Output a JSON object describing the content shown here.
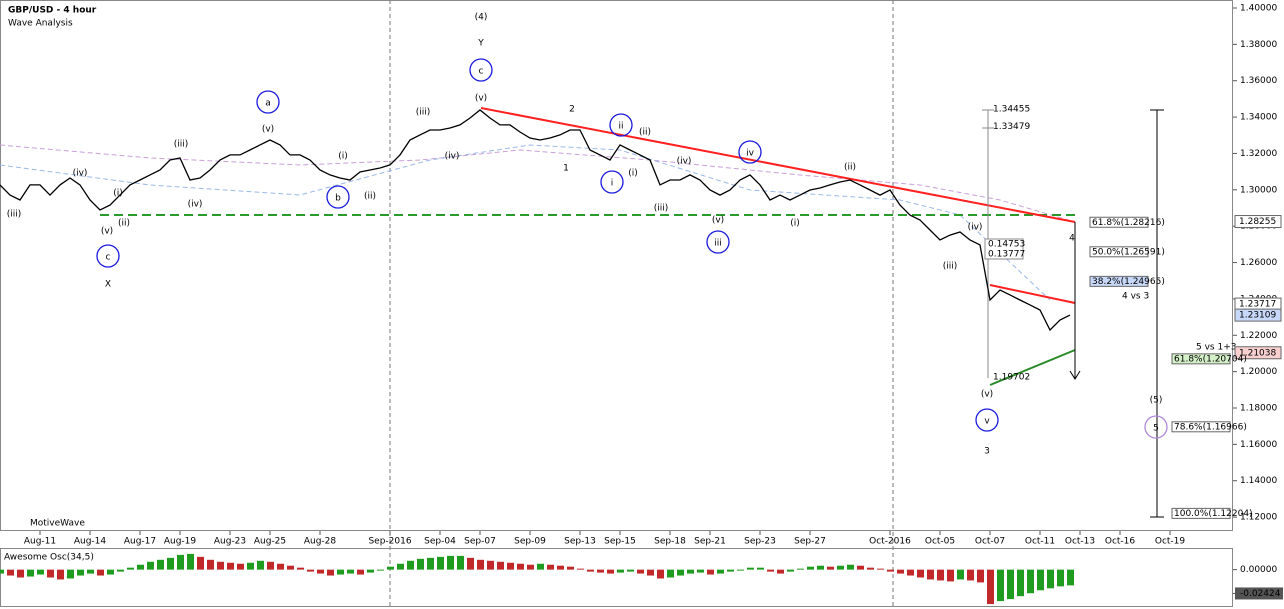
{
  "chart_data": [
    {
      "type": "line",
      "title": "GBP/USD - 4 hour",
      "subtitle": "Wave Analysis",
      "watermark": "MotiveWave",
      "categories": [
        null,
        null,
        null,
        null,
        "Aug-11",
        null,
        null,
        null,
        null,
        "Aug-14",
        null,
        null,
        null,
        null,
        "Aug-17",
        null,
        null,
        null,
        "Aug-19",
        null,
        null,
        null,
        null,
        "Aug-23",
        null,
        null,
        null,
        "Aug-25",
        null,
        null,
        null,
        null,
        "Aug-28",
        null,
        null,
        null,
        null,
        null,
        null,
        "Sep-2016",
        null,
        null,
        null,
        null,
        "Sep-04",
        null,
        null,
        null,
        "Sep-07",
        null,
        null,
        null,
        null,
        "Sep-09",
        null,
        null,
        null,
        null,
        "Sep-13",
        null,
        null,
        null,
        "Sep-15",
        null,
        null,
        null,
        null,
        "Sep-18",
        null,
        null,
        null,
        "Sep-21",
        null,
        null,
        null,
        null,
        "Sep-23",
        null,
        null,
        null,
        null,
        "Sep-27",
        null,
        null,
        null,
        null,
        null,
        null,
        null,
        "Oct-2016",
        null,
        null,
        null,
        null,
        "Oct-05",
        null,
        null,
        null,
        null,
        "Oct-07",
        null,
        null,
        null,
        null,
        "Oct-11",
        null,
        null,
        null,
        "Oct-13",
        null,
        null,
        null,
        "Oct-16",
        null,
        null,
        null,
        null,
        "Oct-19",
        null,
        null,
        null,
        null,
        null
      ],
      "series": [
        {
          "name": "GBP/USD",
          "color": "#000000",
          "values": [
            1.3027,
            1.2971,
            1.2944,
            1.3027,
            1.3027,
            1.2971,
            1.3027,
            1.3065,
            1.3027,
            1.2944,
            1.2889,
            1.2916,
            1.2971,
            1.3027,
            1.3054,
            1.3082,
            1.3109,
            1.3164,
            1.3175,
            1.3054,
            1.3065,
            1.3109,
            1.3164,
            1.3192,
            1.3192,
            1.3219,
            1.3247,
            1.3274,
            1.3247,
            1.3192,
            1.3192,
            1.3164,
            1.3109,
            1.3082,
            1.3065,
            1.3054,
            1.3098,
            1.3109,
            1.312,
            1.3137,
            1.3192,
            1.3274,
            1.3302,
            1.3329,
            1.3329,
            1.334,
            1.3357,
            1.3395,
            1.3439,
            1.3395,
            1.3357,
            1.3357,
            1.3318,
            1.3285,
            1.3274,
            1.3285,
            1.3302,
            1.3329,
            1.3329,
            1.3219,
            1.3192,
            1.3164,
            1.3247,
            1.3219,
            1.3192,
            1.3164,
            1.3027,
            1.3054,
            1.3054,
            1.3082,
            1.3054,
            1.2999,
            1.2971,
            1.2999,
            1.3054,
            1.3082,
            1.3027,
            1.2944,
            1.2971,
            1.2944,
            1.2971,
            1.2999,
            1.301,
            1.3027,
            1.3043,
            1.3054,
            1.3027,
            1.2999,
            1.2971,
            1.2999,
            1.2916,
            1.2861,
            1.2834,
            1.2779,
            1.2724,
            1.2751,
            1.2768,
            1.2724,
            1.2697,
            1.2394,
            1.2449,
            1.2422,
            1.2394,
            1.2367,
            1.2339,
            1.2229,
            1.2284,
            1.2311,
            null,
            null,
            null,
            null,
            null,
            null,
            null,
            null,
            null,
            null,
            null,
            null,
            null,
            null,
            null
          ]
        }
      ],
      "ylim": [
        1.1129,
        1.4044
      ],
      "yticks": [
        {
          "value": 1.4,
          "label": "1.40000"
        },
        {
          "value": 1.38,
          "label": "1.38000"
        },
        {
          "value": 1.36,
          "label": "1.36000"
        },
        {
          "value": 1.34,
          "label": "1.34000"
        },
        {
          "value": 1.32,
          "label": "1.32000"
        },
        {
          "value": 1.3,
          "label": "1.30000"
        },
        {
          "value": 1.28,
          "label": "1.28000"
        },
        {
          "value": 1.26,
          "label": "1.26000"
        },
        {
          "value": 1.24,
          "label": "1.24000"
        },
        {
          "value": 1.22,
          "label": "1.22000"
        },
        {
          "value": 1.2,
          "label": "1.20000"
        },
        {
          "value": 1.18,
          "label": "1.18000"
        },
        {
          "value": 1.16,
          "label": "1.16000"
        },
        {
          "value": 1.14,
          "label": "1.14000"
        },
        {
          "value": 1.12,
          "label": "1.12000"
        }
      ],
      "grid": false,
      "price_markers": [
        {
          "value": 1.28255,
          "color": "#ffffff"
        },
        {
          "value": 1.23717,
          "color": "#ffffff"
        },
        {
          "value": 1.23109,
          "color": "#c8d8f8"
        },
        {
          "value": 1.21038,
          "color": "#f8d0d0"
        }
      ],
      "fib_levels": [
        {
          "value": 1.28216,
          "label": "61.8%(1.28216)",
          "color": "#ffffff"
        },
        {
          "value": 1.26591,
          "label": "50.0%(1.26591)",
          "color": "#ffffff"
        },
        {
          "value": 1.24965,
          "label": "38.2%(1.24965)",
          "color": "#c8d8f8"
        },
        {
          "value": 1.20704,
          "label": "61.8%(1.20704)",
          "color": "#d4f0c8"
        },
        {
          "value": 1.16966,
          "label": "78.6%(1.16966)",
          "color": "#ffffff"
        },
        {
          "value": 1.12204,
          "label": "100.0%(1.12204)",
          "color": "#ffffff"
        }
      ],
      "measure_labels": [
        1.34455,
        1.33479,
        1.19702
      ],
      "measure_ranges": [
        0.14753,
        0.13777
      ],
      "notes": [
        "4 vs 3",
        "5 vs 1+3"
      ],
      "annotations": [
        {
          "text": "(iii)",
          "color": "#f07820",
          "style": "plain"
        },
        {
          "text": "(iv)",
          "color": "#f07820",
          "style": "plain"
        },
        {
          "text": "(i)",
          "color": "#f07820",
          "style": "plain"
        },
        {
          "text": "(v)",
          "color": "#f07820",
          "style": "plain"
        },
        {
          "text": "(ii)",
          "color": "#f07820",
          "style": "plain"
        },
        {
          "text": "c",
          "color": "#1a1adc",
          "style": "circle"
        },
        {
          "text": "X",
          "color": "#33cc33",
          "style": "large"
        },
        {
          "text": "(iii)",
          "color": "#f07820",
          "style": "plain"
        },
        {
          "text": "(iv)",
          "color": "#f07820",
          "style": "plain"
        },
        {
          "text": "(v)",
          "color": "#f07820",
          "style": "plain"
        },
        {
          "text": "a",
          "color": "#1a1adc",
          "style": "circle"
        },
        {
          "text": "b",
          "color": "#1a1adc",
          "style": "circle"
        },
        {
          "text": "(i)",
          "color": "#f07820",
          "style": "plain"
        },
        {
          "text": "(ii)",
          "color": "#f07820",
          "style": "plain"
        },
        {
          "text": "(iii)",
          "color": "#f07820",
          "style": "plain"
        },
        {
          "text": "(iv)",
          "color": "#f07820",
          "style": "plain"
        },
        {
          "text": "(v)",
          "color": "#f07820",
          "style": "plain"
        },
        {
          "text": "c",
          "color": "#1a1adc",
          "style": "circle"
        },
        {
          "text": "Y",
          "color": "#33cc33",
          "style": "large"
        },
        {
          "text": "(4)",
          "color": "#29a9e0",
          "style": "large"
        },
        {
          "text": "2",
          "color": "#33cc33",
          "style": "large"
        },
        {
          "text": "1",
          "color": "#33cc33",
          "style": "large"
        },
        {
          "text": "ii",
          "color": "#1a1adc",
          "style": "circle"
        },
        {
          "text": "i",
          "color": "#1a1adc",
          "style": "circle"
        },
        {
          "text": "(ii)",
          "color": "#f07820",
          "style": "plain"
        },
        {
          "text": "(i)",
          "color": "#f07820",
          "style": "plain"
        },
        {
          "text": "(iii)",
          "color": "#f07820",
          "style": "plain"
        },
        {
          "text": "(iv)",
          "color": "#f07820",
          "style": "plain"
        },
        {
          "text": "(v)",
          "color": "#f07820",
          "style": "plain"
        },
        {
          "text": "iii",
          "color": "#1a1adc",
          "style": "circle"
        },
        {
          "text": "iv",
          "color": "#1a1adc",
          "style": "circle"
        },
        {
          "text": "(i)",
          "color": "#f07820",
          "style": "plain"
        },
        {
          "text": "(ii)",
          "color": "#f07820",
          "style": "plain"
        },
        {
          "text": "(iii)",
          "color": "#f07820",
          "style": "plain"
        },
        {
          "text": "(iv)",
          "color": "#f07820",
          "style": "plain"
        },
        {
          "text": "(v)",
          "color": "#f07820",
          "style": "plain"
        },
        {
          "text": "v",
          "color": "#1a1adc",
          "style": "circle"
        },
        {
          "text": "3",
          "color": "#33cc33",
          "style": "large"
        },
        {
          "text": "4",
          "color": "#33cc33",
          "style": "large"
        },
        {
          "text": "(5)",
          "color": "#29a9e0",
          "style": "large"
        },
        {
          "text": "5",
          "color": "#b08ad8",
          "style": "circle"
        }
      ]
    },
    {
      "type": "bar",
      "title": "Awesome Osc(34,5)",
      "up_color": "#1f9c1f",
      "down_color": "#c0282a",
      "values": [
        -0.004,
        -0.006,
        -0.008,
        -0.007,
        -0.005,
        -0.008,
        -0.01,
        -0.009,
        -0.006,
        -0.004,
        -0.006,
        -0.005,
        -0.002,
        0.002,
        0.005,
        0.008,
        0.01,
        0.012,
        0.015,
        0.016,
        0.013,
        0.01,
        0.008,
        0.007,
        0.006,
        0.007,
        0.009,
        0.008,
        0.006,
        0.004,
        0.002,
        -0.002,
        -0.004,
        -0.006,
        -0.005,
        -0.004,
        -0.005,
        -0.003,
        -0.001,
        0.003,
        0.006,
        0.009,
        0.011,
        0.012,
        0.013,
        0.014,
        0.014,
        0.012,
        0.01,
        0.009,
        0.008,
        0.007,
        0.006,
        0.005,
        0.006,
        0.005,
        0.004,
        0.003,
        0.001,
        -0.002,
        -0.003,
        -0.004,
        -0.003,
        -0.002,
        -0.004,
        -0.006,
        -0.009,
        -0.008,
        -0.006,
        -0.004,
        -0.003,
        -0.005,
        -0.004,
        -0.002,
        -0.001,
        0.002,
        0.002,
        -0.002,
        -0.004,
        -0.002,
        0.001,
        0.003,
        0.004,
        0.003,
        0.004,
        0.005,
        0.004,
        0.002,
        0.001,
        -0.002,
        -0.004,
        -0.006,
        -0.008,
        -0.01,
        -0.011,
        -0.012,
        -0.01,
        -0.011,
        -0.013,
        -0.035,
        -0.032,
        -0.03,
        -0.027,
        -0.024,
        -0.021,
        -0.019,
        -0.017,
        -0.016,
        null,
        null,
        null,
        null,
        null,
        null,
        null,
        null,
        null,
        null,
        null,
        null,
        null,
        null,
        null
      ],
      "ylim": [
        -0.037,
        0.021
      ],
      "yticks": [
        {
          "value": 0,
          "label": "0.00000"
        },
        {
          "value": -0.02424,
          "label": "-0.02424"
        }
      ]
    }
  ]
}
